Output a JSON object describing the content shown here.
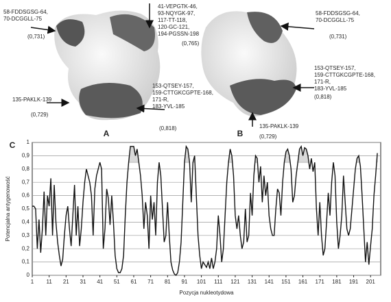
{
  "figure": {
    "panel_labels": [
      "A",
      "B",
      "C"
    ],
    "annotations": [
      {
        "lines": [
          "58-FDDSGSG-64,",
          "70-DCGGLL-75"
        ],
        "score": "(0,731)"
      },
      {
        "lines": [
          "41-VEPGTK-46,",
          "93-NQYGK-97,",
          "117-TT-118,",
          "120-GC-121,",
          "194-PGSSN-198"
        ],
        "score": "(0,765)"
      },
      {
        "lines": [
          "153-QTSEY-157,",
          "159-CTTGKCGPTE-168,",
          "171-R,",
          "183-YVL-185"
        ],
        "score": "(0,818)"
      },
      {
        "lines": [
          "135-PAKLK-139"
        ],
        "score": "(0,729)"
      },
      {
        "lines": [
          "58-FDDSGSG-64,",
          "70-DCGGLL-75"
        ],
        "score": "(0,731)"
      },
      {
        "lines": [
          "153-QTSEY-157,",
          "159-CTTGKCGPTE-168,",
          "171-R,",
          "183-YVL-185"
        ],
        "score": "(0,818)"
      },
      {
        "lines": [
          "135-PAKLK-139"
        ],
        "score": "(0,729)"
      }
    ]
  },
  "chart_data": {
    "type": "line",
    "xlabel": "Pozycja nukleotydowa",
    "ylabel": "Potencjalna antygenowość",
    "color": "#111111",
    "highlight_threshold": 0.85,
    "highlight_color": "#d9d9d9",
    "grid": true,
    "xlim": [
      1,
      207
    ],
    "ylim": [
      0,
      1
    ],
    "xticks": [
      1,
      11,
      21,
      31,
      41,
      51,
      61,
      71,
      81,
      91,
      101,
      111,
      121,
      131,
      141,
      151,
      161,
      171,
      181,
      191,
      201
    ],
    "yticks": [
      0,
      {
        "value": 0.1,
        "label": "0,1"
      },
      {
        "value": 0.2,
        "label": "0,2"
      },
      {
        "value": 0.3,
        "label": "0,3"
      },
      {
        "value": 0.4,
        "label": "0,4"
      },
      {
        "value": 0.5,
        "label": "0,5"
      },
      {
        "value": 0.6,
        "label": "0,6"
      },
      {
        "value": 0.7,
        "label": "0,7"
      },
      {
        "value": 0.8,
        "label": "0,8"
      },
      {
        "value": 0.9,
        "label": "0,9"
      },
      1
    ],
    "x": [
      1,
      2,
      3,
      4,
      5,
      6,
      7,
      8,
      9,
      10,
      11,
      12,
      13,
      14,
      15,
      16,
      17,
      18,
      19,
      20,
      21,
      22,
      23,
      24,
      25,
      26,
      27,
      28,
      29,
      30,
      31,
      32,
      33,
      34,
      35,
      36,
      37,
      38,
      39,
      40,
      41,
      42,
      43,
      44,
      45,
      46,
      47,
      48,
      49,
      50,
      51,
      52,
      53,
      54,
      55,
      56,
      57,
      58,
      59,
      60,
      61,
      62,
      63,
      64,
      65,
      66,
      67,
      68,
      69,
      70,
      71,
      72,
      73,
      74,
      75,
      76,
      77,
      78,
      79,
      80,
      81,
      82,
      83,
      84,
      85,
      86,
      87,
      88,
      89,
      90,
      91,
      92,
      93,
      94,
      95,
      96,
      97,
      98,
      99,
      100,
      101,
      102,
      103,
      104,
      105,
      106,
      107,
      108,
      109,
      110,
      111,
      112,
      113,
      114,
      115,
      116,
      117,
      118,
      119,
      120,
      121,
      122,
      123,
      124,
      125,
      126,
      127,
      128,
      129,
      130,
      131,
      132,
      133,
      134,
      135,
      136,
      137,
      138,
      139,
      140,
      141,
      142,
      143,
      144,
      145,
      146,
      147,
      148,
      149,
      150,
      151,
      152,
      153,
      154,
      155,
      156,
      157,
      158,
      159,
      160,
      161,
      162,
      163,
      164,
      165,
      166,
      167,
      168,
      169,
      170,
      171,
      172,
      173,
      174,
      175,
      176,
      177,
      178,
      179,
      180,
      181,
      182,
      183,
      184,
      185,
      186,
      187,
      188,
      189,
      190,
      191,
      192,
      193,
      194,
      195,
      196,
      197,
      198,
      199,
      200,
      201,
      202,
      203,
      204,
      205
    ],
    "values": [
      0.52,
      0.52,
      0.5,
      0.2,
      0.42,
      0.17,
      0.35,
      0.63,
      0.3,
      0.6,
      0.52,
      0.73,
      0.3,
      0.68,
      0.4,
      0.25,
      0.15,
      0.07,
      0.12,
      0.3,
      0.45,
      0.52,
      0.35,
      0.22,
      0.45,
      0.68,
      0.3,
      0.52,
      0.22,
      0.35,
      0.55,
      0.7,
      0.8,
      0.75,
      0.7,
      0.6,
      0.3,
      0.65,
      0.75,
      0.8,
      0.85,
      0.8,
      0.2,
      0.35,
      0.65,
      0.58,
      0.38,
      0.6,
      0.4,
      0.15,
      0.05,
      0.02,
      0.02,
      0.05,
      0.15,
      0.45,
      0.7,
      0.85,
      0.97,
      0.97,
      0.97,
      0.9,
      0.95,
      0.85,
      0.75,
      0.6,
      0.35,
      0.55,
      0.45,
      0.2,
      0.6,
      0.42,
      0.55,
      0.3,
      0.7,
      0.85,
      0.75,
      0.5,
      0.25,
      0.3,
      0.55,
      0.3,
      0.1,
      0.04,
      0.01,
      0,
      0.02,
      0.1,
      0.25,
      0.55,
      0.85,
      0.97,
      0.95,
      0.85,
      0.55,
      0.85,
      0.9,
      0.6,
      0.3,
      0.15,
      0.05,
      0.1,
      0.08,
      0.06,
      0.1,
      0.05,
      0.13,
      0.05,
      0.1,
      0.2,
      0.45,
      0.3,
      0.1,
      0.2,
      0.45,
      0.7,
      0.85,
      0.95,
      0.9,
      0.75,
      0.45,
      0.35,
      0.45,
      0.3,
      0.2,
      0.25,
      0.5,
      0.25,
      0.3,
      0.62,
      0.45,
      0.75,
      0.9,
      0.88,
      0.7,
      0.82,
      0.55,
      0.75,
      0.6,
      0.7,
      0.45,
      0.35,
      0.3,
      0.3,
      0.5,
      0.65,
      0.62,
      0.45,
      0.7,
      0.85,
      0.93,
      0.95,
      0.9,
      0.8,
      0.55,
      0.6,
      0.75,
      0.85,
      0.95,
      0.97,
      0.9,
      0.96,
      0.95,
      0.9,
      0.8,
      0.88,
      0.78,
      0.85,
      0.5,
      0.3,
      0.55,
      0.3,
      0.15,
      0.2,
      0.4,
      0.62,
      0.45,
      0.7,
      0.85,
      0.75,
      0.4,
      0.2,
      0.3,
      0.45,
      0.75,
      0.55,
      0.35,
      0.3,
      0.35,
      0.5,
      0.65,
      0.8,
      0.88,
      0.9,
      0.82,
      0.6,
      0.35,
      0.1,
      0.25,
      0.08,
      0.22,
      0.35,
      0.6,
      0.75,
      0.92
    ]
  }
}
